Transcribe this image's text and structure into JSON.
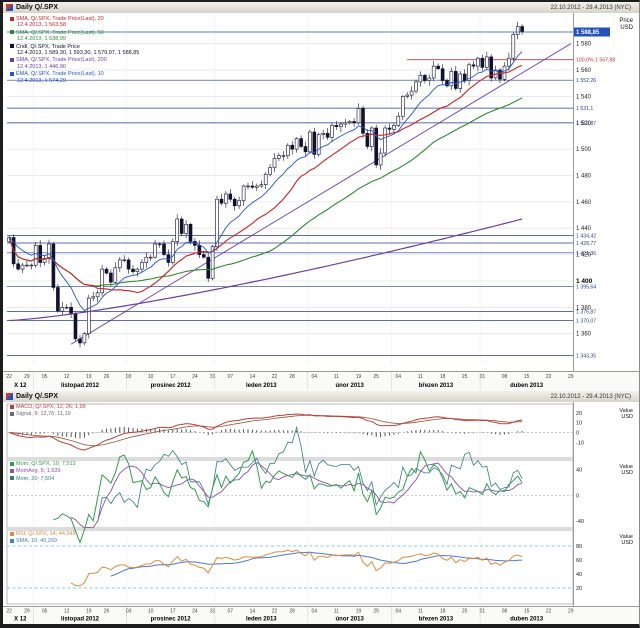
{
  "header": {
    "title": "Daily Q/.SPX",
    "range": "22.10.2012 - 29.4.2013 (NYC)"
  },
  "price_axis": {
    "unit_top": "Price",
    "unit_bottom": "USD",
    "ticks": [
      {
        "v": 1580,
        "label": "1 580"
      },
      {
        "v": 1560,
        "label": "1 560"
      },
      {
        "v": 1540,
        "label": "1 540"
      },
      {
        "v": 1520,
        "label": "1 520"
      },
      {
        "v": 1500,
        "label": "1 500"
      },
      {
        "v": 1480,
        "label": "1 480"
      },
      {
        "v": 1460,
        "label": "1 460"
      },
      {
        "v": 1440,
        "label": "1 440"
      },
      {
        "v": 1420,
        "label": "1 420"
      },
      {
        "v": 1400,
        "label": "1 400",
        "bold": true
      },
      {
        "v": 1380,
        "label": "1 380"
      },
      {
        "v": 1360,
        "label": "1 360"
      }
    ]
  },
  "value_axis_unit": {
    "top": "Value",
    "bottom": "USD"
  },
  "legend_main": [
    {
      "color": "#cc2222",
      "name": "SMA, Q/.SPX, Trade Price(Last), 20",
      "values": "12.4.2013, 1 563,58"
    },
    {
      "color": "#2e8b2e",
      "name": "SMA, Q/.SPX, Trade Price(Last), 50",
      "values": "12.4.2013, 1 538,99"
    },
    {
      "color": "#101030",
      "name": "Cndl, Q/.SPX, Trade Price",
      "values": "12.4.2013, 1 589,30, 1 593,30, 1 579,97, 1 588,85"
    },
    {
      "color": "#6a3fa0",
      "name": "SMA, Q/.SPX, Trade Price(Last), 200",
      "values": "12.4.2013, 1 446,90"
    },
    {
      "color": "#2255cc",
      "name": "EMA, Q/.SPX, Trade Price(Last), 10",
      "values": "12.4.2013, 1 574,29"
    }
  ],
  "panel_legends": {
    "macd": [
      {
        "color": "#c23b3b",
        "text": "MACD, Q/.SPX, 12, 26; 1,99"
      },
      {
        "color": "#6b6b6b",
        "text": "Signal, 9; 12,76; 11,19"
      }
    ],
    "mom": [
      {
        "color": "#2f9e4e",
        "text": "Mom, Q/.SPX, 10; 7,513"
      },
      {
        "color": "#8b4fae",
        "text": "MomAvg, 5; 1,639"
      },
      {
        "color": "#2f7f7f",
        "text": "Mom, 20; 7,504"
      }
    ],
    "osc": [
      {
        "color": "#e08a3c",
        "text": "RSI, Q/.SPX, 14; 44,549"
      },
      {
        "color": "#4a7cc7",
        "text": "SMA, 10; 40,269"
      }
    ]
  },
  "x_axis": {
    "slots": 128,
    "months": [
      {
        "label": "X 12",
        "start": 0,
        "days": [
          [
            "22",
            0
          ],
          [
            "29",
            4
          ]
        ]
      },
      {
        "label": "listopad 2012",
        "start": 6,
        "days": [
          [
            "05",
            8
          ],
          [
            "12",
            13
          ],
          [
            "19",
            18
          ],
          [
            "26",
            22
          ]
        ]
      },
      {
        "label": "prosinec 2012",
        "start": 27,
        "days": [
          [
            "03",
            27
          ],
          [
            "10",
            32
          ],
          [
            "17",
            37
          ],
          [
            "24",
            42
          ],
          [
            "31",
            46
          ]
        ]
      },
      {
        "label": "leden 2013",
        "start": 47,
        "days": [
          [
            "07",
            50
          ],
          [
            "14",
            55
          ],
          [
            "22",
            60
          ],
          [
            "28",
            64
          ]
        ]
      },
      {
        "label": "únor 2013",
        "start": 68,
        "days": [
          [
            "04",
            69
          ],
          [
            "11",
            74
          ],
          [
            "19",
            79
          ],
          [
            "25",
            83
          ]
        ]
      },
      {
        "label": "březen 2013",
        "start": 87,
        "days": [
          [
            "04",
            88
          ],
          [
            "11",
            93
          ],
          [
            "18",
            98
          ],
          [
            "25",
            103
          ]
        ]
      },
      {
        "label": "duben 2013",
        "start": 107,
        "days": [
          [
            "01",
            107
          ],
          [
            "08",
            112
          ],
          [
            "15",
            117
          ],
          [
            "22",
            122
          ],
          [
            "29",
            127
          ]
        ]
      }
    ]
  },
  "chart_data": {
    "type": "candlestick",
    "title": "Daily Q/.SPX",
    "x_range": "22.10.2012 - 29.4.2013 (NYC)",
    "interval": "daily",
    "ylabel": "Price USD",
    "ylim": [
      1337,
      1601
    ],
    "first_open": 1430,
    "closes": [
      1433,
      1413,
      1409,
      1412,
      1412,
      1412,
      1427,
      1414,
      1417,
      1428,
      1395,
      1377,
      1380,
      1380,
      1375,
      1356,
      1353,
      1360,
      1387,
      1388,
      1391,
      1409,
      1406,
      1399,
      1410,
      1416,
      1416,
      1409,
      1407,
      1409,
      1414,
      1418,
      1418,
      1428,
      1428,
      1420,
      1414,
      1430,
      1447,
      1436,
      1443,
      1430,
      1427,
      1420,
      1418,
      1402,
      1426,
      1462,
      1459,
      1466,
      1462,
      1457,
      1461,
      1472,
      1472,
      1471,
      1472,
      1473,
      1481,
      1486,
      1493,
      1495,
      1495,
      1503,
      1500,
      1508,
      1502,
      1498,
      1513,
      1496,
      1511,
      1512,
      1509,
      1518,
      1517,
      1519,
      1520,
      1521,
      1520,
      1531,
      1512,
      1502,
      1516,
      1488,
      1497,
      1516,
      1515,
      1518,
      1525,
      1540,
      1541,
      1544,
      1551,
      1556,
      1552,
      1554,
      1563,
      1561,
      1552,
      1548,
      1559,
      1546,
      1557,
      1552,
      1564,
      1563,
      1569,
      1562,
      1570,
      1554,
      1560,
      1553,
      1563,
      1569,
      1587,
      1593,
      1589
    ],
    "last_candle": {
      "date": "12.4.2013",
      "open": "1 589,30",
      "high": "1 593,30",
      "low": "1 579,97",
      "close": "1 588,85"
    },
    "last_price": {
      "v": 1588.85,
      "label": "1 588,85"
    },
    "overlays": [
      {
        "name": "SMA 20",
        "color": "#cc2222",
        "last": "1 563,58"
      },
      {
        "name": "SMA 50",
        "color": "#2e8b2e",
        "last": "1 538,99"
      },
      {
        "name": "SMA 200",
        "color": "#6a3fa0",
        "last": "1 446,90"
      },
      {
        "name": "EMA 10",
        "color": "#2255cc",
        "last": "1 574,29"
      }
    ],
    "level_lines": [
      {
        "v": 1552.26,
        "label": "1 552,26"
      },
      {
        "v": 1531.1,
        "label": "1 531,1"
      },
      {
        "v": 1519.87,
        "label": "1 519,87"
      },
      {
        "v": 1434.42,
        "label": "1 434,42"
      },
      {
        "v": 1428.77,
        "label": "1 428,77"
      },
      {
        "v": 1421.36,
        "label": "1 421,36"
      },
      {
        "v": 1395.64,
        "label": "1 395,64"
      },
      {
        "v": 1376.87,
        "label": "1 376,87"
      },
      {
        "v": 1370.07,
        "label": "1 370,07"
      },
      {
        "v": 1343.35,
        "label": "1 343,35"
      }
    ],
    "fib": {
      "v": 1567.88,
      "label": "100,0%",
      "price_label": "1 567,88"
    },
    "sub_panels": [
      {
        "type": "line",
        "name": "MACD 12,26 with signal 9 and histogram",
        "ylim": [
          -24,
          27
        ],
        "ticks": [
          20,
          10,
          0,
          -10
        ],
        "legend_last": [
          "1,99",
          "12,76",
          "11,19"
        ]
      },
      {
        "type": "line",
        "name": "Momentum 10 and 20 with 5-period average",
        "ylim": [
          -48,
          52
        ],
        "ticks": [
          40,
          0,
          -40
        ],
        "legend_last": [
          "7,513",
          "1,639",
          "7,504"
        ]
      },
      {
        "type": "line",
        "name": "Oscillator with average",
        "ylim": [
          0,
          100
        ],
        "ticks": [
          80,
          60,
          40,
          20
        ],
        "bands": [
          80,
          20
        ],
        "legend_last": [
          "44,549",
          "40,269"
        ]
      }
    ]
  }
}
